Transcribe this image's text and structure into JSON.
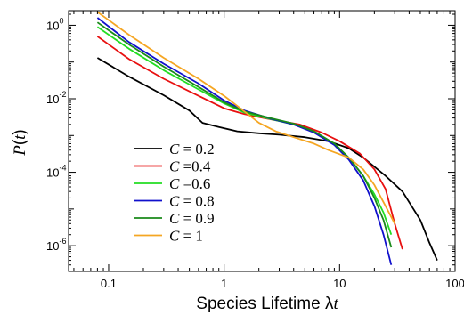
{
  "chart_data": {
    "type": "line",
    "title": "",
    "xlabel": "Species Lifetime λt",
    "ylabel": "P(t)",
    "xscale": "log",
    "yscale": "log",
    "xlim": [
      0.045,
      100
    ],
    "ylim": [
      2e-07,
      2.5
    ],
    "grid": false,
    "legend_position": "lower-left",
    "x_ticks": [
      {
        "value": 0.1,
        "label": "0.1"
      },
      {
        "value": 1,
        "label": "1"
      },
      {
        "value": 10,
        "label": "10"
      },
      {
        "value": 100,
        "label": "100"
      }
    ],
    "y_ticks": [
      {
        "value": 1e-06,
        "mantissa": "10",
        "exponent": "-6"
      },
      {
        "value": 0.0001,
        "mantissa": "10",
        "exponent": "-4"
      },
      {
        "value": 0.01,
        "mantissa": "10",
        "exponent": "-2"
      },
      {
        "value": 1,
        "mantissa": "10",
        "exponent": "0"
      }
    ],
    "series": [
      {
        "name": "C = 0.2",
        "legend_var": "C",
        "legend_value": "= 0.2",
        "color": "#000000",
        "points": [
          [
            0.08,
            0.13
          ],
          [
            0.15,
            0.04
          ],
          [
            0.3,
            0.0125
          ],
          [
            0.5,
            0.0048
          ],
          [
            0.65,
            0.0022
          ],
          [
            0.9,
            0.0017
          ],
          [
            1.3,
            0.0013
          ],
          [
            2,
            0.00115
          ],
          [
            3,
            0.00105
          ],
          [
            5,
            0.0009
          ],
          [
            8,
            0.0007
          ],
          [
            12,
            0.00045
          ],
          [
            16,
            0.00025
          ],
          [
            25,
            8e-05
          ],
          [
            35,
            3e-05
          ],
          [
            50,
            5e-06
          ],
          [
            60,
            1.2e-06
          ],
          [
            70,
            4e-07
          ]
        ]
      },
      {
        "name": "C =0.4",
        "legend_var": "C",
        "legend_value": "=0.4",
        "color": "#e81010",
        "points": [
          [
            0.08,
            0.5
          ],
          [
            0.15,
            0.12
          ],
          [
            0.3,
            0.035
          ],
          [
            0.6,
            0.012
          ],
          [
            1,
            0.0055
          ],
          [
            1.5,
            0.0038
          ],
          [
            2.2,
            0.003
          ],
          [
            3,
            0.0025
          ],
          [
            4.5,
            0.002
          ],
          [
            7,
            0.0012
          ],
          [
            10,
            0.0007
          ],
          [
            15,
            0.00032
          ],
          [
            20,
            0.00012
          ],
          [
            25,
            3.5e-05
          ],
          [
            30,
            4e-06
          ],
          [
            35,
            8e-07
          ]
        ]
      },
      {
        "name": "C =0.6",
        "legend_var": "C",
        "legend_value": "=0.6",
        "color": "#22dd22",
        "points": [
          [
            0.08,
            0.9
          ],
          [
            0.15,
            0.23
          ],
          [
            0.3,
            0.06
          ],
          [
            0.6,
            0.018
          ],
          [
            1,
            0.0075
          ],
          [
            1.5,
            0.0042
          ],
          [
            2.5,
            0.0028
          ],
          [
            4,
            0.002
          ],
          [
            6,
            0.0013
          ],
          [
            9,
            0.0006
          ],
          [
            12,
            0.00025
          ],
          [
            16,
            8e-05
          ],
          [
            20,
            2.5e-05
          ],
          [
            24,
            8e-06
          ],
          [
            28,
            2e-06
          ]
        ]
      },
      {
        "name": "C = 0.8",
        "legend_var": "C",
        "legend_value": "= 0.8",
        "color": "#1010cc",
        "points": [
          [
            0.08,
            1.6
          ],
          [
            0.15,
            0.35
          ],
          [
            0.3,
            0.09
          ],
          [
            0.6,
            0.026
          ],
          [
            1,
            0.009
          ],
          [
            1.5,
            0.0048
          ],
          [
            2.5,
            0.0029
          ],
          [
            4,
            0.002
          ],
          [
            6,
            0.0012
          ],
          [
            9,
            0.00055
          ],
          [
            12,
            0.00022
          ],
          [
            16,
            6e-05
          ],
          [
            20,
            1.2e-05
          ],
          [
            24,
            2e-06
          ],
          [
            28,
            3e-07
          ]
        ]
      },
      {
        "name": "C = 0.9",
        "legend_var": "C",
        "legend_value": "= 0.9",
        "color": "#1a8a1a",
        "points": [
          [
            0.08,
            1.2
          ],
          [
            0.15,
            0.3
          ],
          [
            0.3,
            0.075
          ],
          [
            0.6,
            0.021
          ],
          [
            1,
            0.008
          ],
          [
            1.5,
            0.0045
          ],
          [
            2.5,
            0.003
          ],
          [
            4,
            0.0021
          ],
          [
            6,
            0.0013
          ],
          [
            9,
            0.0006
          ],
          [
            12,
            0.00025
          ],
          [
            16,
            8e-05
          ],
          [
            20,
            2e-05
          ],
          [
            24,
            5e-06
          ],
          [
            28,
            9e-07
          ]
        ]
      },
      {
        "name": "C = 1",
        "legend_var": "C",
        "legend_value": "= 1",
        "color": "#f5a623",
        "points": [
          [
            0.08,
            2.3
          ],
          [
            0.15,
            0.55
          ],
          [
            0.3,
            0.13
          ],
          [
            0.6,
            0.035
          ],
          [
            1,
            0.012
          ],
          [
            1.5,
            0.0045
          ],
          [
            2,
            0.0022
          ],
          [
            2.8,
            0.0013
          ],
          [
            4,
            0.0009
          ],
          [
            6,
            0.0006
          ],
          [
            8,
            0.0004
          ],
          [
            12,
            0.00025
          ],
          [
            16,
            0.00012
          ],
          [
            20,
            4.5e-05
          ],
          [
            25,
            1.2e-05
          ],
          [
            30,
            4e-06
          ]
        ]
      }
    ]
  }
}
